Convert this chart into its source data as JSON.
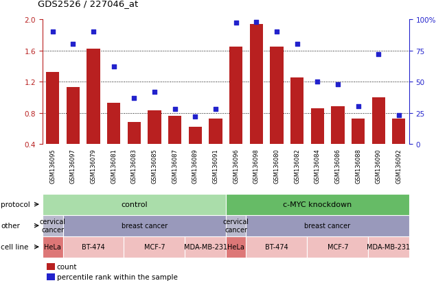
{
  "title": "GDS2526 / 227046_at",
  "samples": [
    "GSM136095",
    "GSM136097",
    "GSM136079",
    "GSM136081",
    "GSM136083",
    "GSM136085",
    "GSM136087",
    "GSM136089",
    "GSM136091",
    "GSM136096",
    "GSM136098",
    "GSM136080",
    "GSM136082",
    "GSM136084",
    "GSM136086",
    "GSM136088",
    "GSM136090",
    "GSM136092"
  ],
  "bar_values": [
    1.32,
    1.13,
    1.62,
    0.93,
    0.68,
    0.83,
    0.76,
    0.62,
    0.73,
    1.65,
    1.94,
    1.65,
    1.25,
    0.86,
    0.88,
    0.73,
    1.0,
    0.73
  ],
  "dot_values_pct": [
    90,
    80,
    90,
    62,
    37,
    42,
    28,
    22,
    28,
    97,
    98,
    90,
    80,
    50,
    48,
    30,
    72,
    23
  ],
  "ylim_left": [
    0.4,
    2.0
  ],
  "ylim_right": [
    0,
    100
  ],
  "yticks_left": [
    0.4,
    0.8,
    1.2,
    1.6,
    2.0
  ],
  "yticks_right": [
    0,
    25,
    50,
    75,
    100
  ],
  "ytick_labels_right": [
    "0",
    "25",
    "50",
    "75",
    "100%"
  ],
  "bar_color": "#b82020",
  "dot_color": "#2222cc",
  "protocol_control_color": "#aaddaa",
  "protocol_knockdown_color": "#66bb66",
  "other_cervical_color": "#b8b8cc",
  "other_breast_color": "#9999bb",
  "cell_hela_color": "#dd7777",
  "cell_other_color": "#f0c0c0",
  "other_row": [
    {
      "label": "cervical\ncancer",
      "span": [
        0,
        0
      ]
    },
    {
      "label": "breast cancer",
      "span": [
        1,
        8
      ]
    },
    {
      "label": "cervical\ncancer",
      "span": [
        9,
        9
      ]
    },
    {
      "label": "breast cancer",
      "span": [
        10,
        17
      ]
    }
  ],
  "cell_line_row": [
    {
      "label": "HeLa",
      "span": [
        0,
        0
      ],
      "hela": true
    },
    {
      "label": "BT-474",
      "span": [
        1,
        3
      ],
      "hela": false
    },
    {
      "label": "MCF-7",
      "span": [
        4,
        6
      ],
      "hela": false
    },
    {
      "label": "MDA-MB-231",
      "span": [
        7,
        8
      ],
      "hela": false
    },
    {
      "label": "HeLa",
      "span": [
        9,
        9
      ],
      "hela": true
    },
    {
      "label": "BT-474",
      "span": [
        10,
        12
      ],
      "hela": false
    },
    {
      "label": "MCF-7",
      "span": [
        13,
        15
      ],
      "hela": false
    },
    {
      "label": "MDA-MB-231",
      "span": [
        16,
        17
      ],
      "hela": false
    }
  ]
}
